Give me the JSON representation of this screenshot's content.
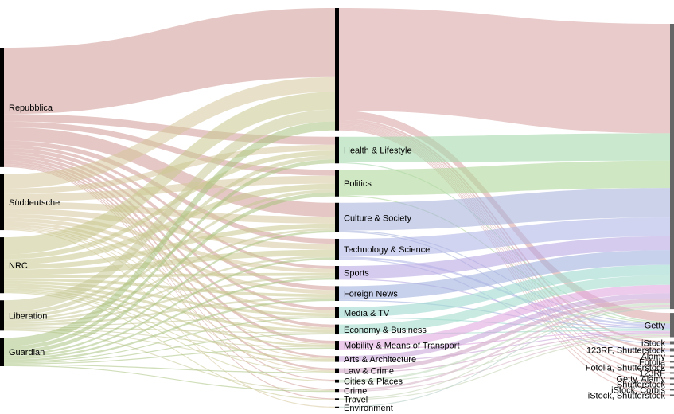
{
  "sources": [
    {
      "id": "repubblica",
      "label": "Repubblica",
      "color": "#cf9a96"
    },
    {
      "id": "suddeutsche",
      "label": "Süddeutsche",
      "color": "#d6c79a"
    },
    {
      "id": "nrc",
      "label": "NRC",
      "color": "#c9c88f"
    },
    {
      "id": "liberation",
      "label": "Liberation",
      "color": "#c6c995"
    },
    {
      "id": "guardian",
      "label": "Guardian",
      "color": "#a9c37f"
    }
  ],
  "categories": [
    {
      "id": "top",
      "label": "",
      "color": "#d8a9a6"
    },
    {
      "id": "health",
      "label": "Health & Lifestyle",
      "color": "#a6d9ac"
    },
    {
      "id": "politics",
      "label": "Politics",
      "color": "#b0d79b"
    },
    {
      "id": "culture",
      "label": "Culture & Society",
      "color": "#a9b4dc"
    },
    {
      "id": "tech",
      "label": "Technology & Science",
      "color": "#b2b8e6"
    },
    {
      "id": "sports",
      "label": "Sports",
      "color": "#b7a9e3"
    },
    {
      "id": "foreign",
      "label": "Foreign News",
      "color": "#a3b2e0"
    },
    {
      "id": "media",
      "label": "Media & TV",
      "color": "#9fd9d1"
    },
    {
      "id": "economy",
      "label": "Economy & Business",
      "color": "#a3dccb"
    },
    {
      "id": "mobility",
      "label": "Mobility & Means of Transport",
      "color": "#e0a8e0"
    },
    {
      "id": "arts",
      "label": "Arts & Architecture",
      "color": "#c9a7da"
    },
    {
      "id": "law",
      "label": "Law & Crime",
      "color": "#d1a8c6"
    },
    {
      "id": "cities",
      "label": "Cities & Places",
      "color": "#c4dcc0"
    },
    {
      "id": "crime",
      "label": "Crime",
      "color": "#d8b8c8"
    },
    {
      "id": "travel",
      "label": "Travel",
      "color": "#c8d6b8"
    },
    {
      "id": "environment",
      "label": "Environment",
      "color": "#b8d0c8"
    }
  ],
  "agencies": [
    {
      "id": "unlabeled",
      "label": ""
    },
    {
      "id": "getty",
      "label": "Getty"
    },
    {
      "id": "istock",
      "label": "iStock"
    },
    {
      "id": "123rf-shutterstock",
      "label": "123RF, Shutterstock"
    },
    {
      "id": "alamy",
      "label": "Alamy"
    },
    {
      "id": "fotolia",
      "label": "Fotolia"
    },
    {
      "id": "fotolia-shutterstock",
      "label": "Fotolia, Shutterstock"
    },
    {
      "id": "123rf",
      "label": "123RF"
    },
    {
      "id": "getty-alamy",
      "label": "Getty, Alamy"
    },
    {
      "id": "shutterstock",
      "label": "Shutterstock"
    },
    {
      "id": "istock-corbis",
      "label": "iStock, Corbis"
    },
    {
      "id": "istock-shutterstock",
      "label": "iStock, Shutterstock"
    }
  ],
  "flows_source_category": [
    [
      "repubblica",
      "top",
      70
    ],
    [
      "repubblica",
      "health",
      8
    ],
    [
      "repubblica",
      "politics",
      6
    ],
    [
      "repubblica",
      "culture",
      14
    ],
    [
      "repubblica",
      "tech",
      5
    ],
    [
      "repubblica",
      "sports",
      3
    ],
    [
      "repubblica",
      "foreign",
      4
    ],
    [
      "repubblica",
      "media",
      3
    ],
    [
      "repubblica",
      "economy",
      3
    ],
    [
      "repubblica",
      "mobility",
      3
    ],
    [
      "repubblica",
      "arts",
      2
    ],
    [
      "repubblica",
      "law",
      2
    ],
    [
      "repubblica",
      "cities",
      1
    ],
    [
      "repubblica",
      "crime",
      1
    ],
    [
      "repubblica",
      "travel",
      1
    ],
    [
      "suddeutsche",
      "top",
      15
    ],
    [
      "suddeutsche",
      "health",
      6
    ],
    [
      "suddeutsche",
      "politics",
      8
    ],
    [
      "suddeutsche",
      "culture",
      7
    ],
    [
      "suddeutsche",
      "tech",
      6
    ],
    [
      "suddeutsche",
      "sports",
      4
    ],
    [
      "suddeutsche",
      "foreign",
      4
    ],
    [
      "suddeutsche",
      "media",
      3
    ],
    [
      "suddeutsche",
      "economy",
      2
    ],
    [
      "suddeutsche",
      "mobility",
      1
    ],
    [
      "suddeutsche",
      "arts",
      1
    ],
    [
      "suddeutsche",
      "law",
      1
    ],
    [
      "suddeutsche",
      "environment",
      1
    ],
    [
      "nrc",
      "top",
      18
    ],
    [
      "nrc",
      "health",
      5
    ],
    [
      "nrc",
      "politics",
      6
    ],
    [
      "nrc",
      "culture",
      5
    ],
    [
      "nrc",
      "tech",
      6
    ],
    [
      "nrc",
      "sports",
      3
    ],
    [
      "nrc",
      "foreign",
      3
    ],
    [
      "nrc",
      "media",
      3
    ],
    [
      "nrc",
      "economy",
      3
    ],
    [
      "nrc",
      "mobility",
      2
    ],
    [
      "nrc",
      "arts",
      2
    ],
    [
      "nrc",
      "law",
      1
    ],
    [
      "nrc",
      "cities",
      1
    ],
    [
      "nrc",
      "travel",
      1
    ],
    [
      "liberation",
      "top",
      12
    ],
    [
      "liberation",
      "health",
      4
    ],
    [
      "liberation",
      "politics",
      3
    ],
    [
      "liberation",
      "culture",
      2
    ],
    [
      "liberation",
      "tech",
      2
    ],
    [
      "liberation",
      "sports",
      2
    ],
    [
      "liberation",
      "foreign",
      2
    ],
    [
      "liberation",
      "media",
      1
    ],
    [
      "liberation",
      "economy",
      1
    ],
    [
      "liberation",
      "mobility",
      1
    ],
    [
      "liberation",
      "arts",
      1
    ],
    [
      "liberation",
      "crime",
      1
    ],
    [
      "guardian",
      "top",
      9
    ],
    [
      "guardian",
      "health",
      4
    ],
    [
      "guardian",
      "politics",
      4
    ],
    [
      "guardian",
      "culture",
      2
    ],
    [
      "guardian",
      "tech",
      2
    ],
    [
      "guardian",
      "sports",
      2
    ],
    [
      "guardian",
      "foreign",
      2
    ],
    [
      "guardian",
      "media",
      1
    ],
    [
      "guardian",
      "economy",
      1
    ],
    [
      "guardian",
      "mobility",
      1
    ],
    [
      "guardian",
      "law",
      1
    ],
    [
      "guardian",
      "crime",
      1
    ]
  ],
  "flows_category_agency": [
    [
      "top",
      "unlabeled",
      104
    ],
    [
      "top",
      "getty",
      8
    ],
    [
      "top",
      "istock",
      2
    ],
    [
      "top",
      "123rf-shutterstock",
      2
    ],
    [
      "top",
      "alamy",
      1
    ],
    [
      "top",
      "fotolia",
      1
    ],
    [
      "top",
      "fotolia-shutterstock",
      1
    ],
    [
      "top",
      "123rf",
      1
    ],
    [
      "top",
      "getty-alamy",
      1
    ],
    [
      "top",
      "shutterstock",
      1
    ],
    [
      "top",
      "istock-corbis",
      1
    ],
    [
      "top",
      "istock-shutterstock",
      1
    ],
    [
      "health",
      "unlabeled",
      26
    ],
    [
      "health",
      "getty",
      1
    ],
    [
      "politics",
      "unlabeled",
      26
    ],
    [
      "politics",
      "getty",
      1
    ],
    [
      "culture",
      "unlabeled",
      28
    ],
    [
      "culture",
      "getty",
      1
    ],
    [
      "culture",
      "istock",
      1
    ],
    [
      "tech",
      "unlabeled",
      18
    ],
    [
      "tech",
      "getty",
      2
    ],
    [
      "tech",
      "123rf-shutterstock",
      1
    ],
    [
      "sports",
      "unlabeled",
      13
    ],
    [
      "sports",
      "getty",
      1
    ],
    [
      "foreign",
      "unlabeled",
      14
    ],
    [
      "foreign",
      "getty",
      1
    ],
    [
      "media",
      "unlabeled",
      10
    ],
    [
      "media",
      "getty",
      1
    ],
    [
      "economy",
      "unlabeled",
      9
    ],
    [
      "economy",
      "getty",
      1
    ],
    [
      "mobility",
      "unlabeled",
      8
    ],
    [
      "mobility",
      "getty",
      1
    ],
    [
      "arts",
      "unlabeled",
      5
    ],
    [
      "arts",
      "getty",
      1
    ],
    [
      "law",
      "unlabeled",
      4
    ],
    [
      "law",
      "getty",
      1
    ],
    [
      "cities",
      "unlabeled",
      2
    ],
    [
      "cities",
      "getty",
      1
    ],
    [
      "crime",
      "unlabeled",
      2
    ],
    [
      "crime",
      "getty",
      1
    ],
    [
      "travel",
      "unlabeled",
      1
    ],
    [
      "travel",
      "getty",
      1
    ],
    [
      "environment",
      "unlabeled",
      1
    ]
  ]
}
